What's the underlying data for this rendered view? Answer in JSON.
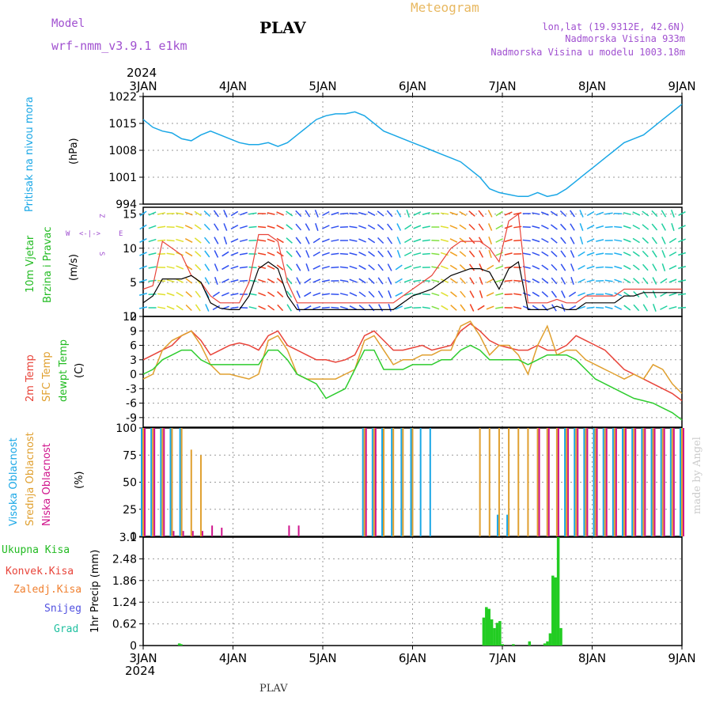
{
  "header": {
    "model_label": "Model",
    "model_name": "wrf-nmm_v3.9.1  e1km",
    "station": "PLAV",
    "meteogram": "Meteogram",
    "lonlat": "lon,lat (19.9312E, 42.6N)",
    "elevation": "Nadmorska Visina 933m",
    "model_elevation": "Nadmorska Visina u modelu 1003.18m",
    "year_top": "2024",
    "year_bottom": "2024",
    "footer_station": "PLAV",
    "credit": "made by Angel"
  },
  "colors": {
    "pressure": "#1aa7e6",
    "t2m": "#e8443a",
    "tsfc": "#e0a030",
    "dewpt": "#2ecc2e",
    "high_cloud": "#1aa7e6",
    "mid_cloud": "#e0a030",
    "low_cloud": "#d0148c",
    "total_precip": "#22cc22",
    "conv_precip": "#e8443a",
    "frz_precip": "#f08030",
    "snow": "#5050e0",
    "graupel": "#20c0a0",
    "wind_speed": "#000000",
    "gust": "#e8443a",
    "model_text": "#a050d0",
    "meteogram_text": "#e8b860"
  },
  "chart_data": [
    {
      "type": "line",
      "id": "pressure",
      "ylabel_title": "Pritisak na nivou mora",
      "ylabel_unit": "(hPa)",
      "x_ticks": [
        "3JAN",
        "4JAN",
        "5JAN",
        "6JAN",
        "7JAN",
        "8JAN",
        "9JAN"
      ],
      "yticks": [
        "994",
        "1001",
        "1008",
        "1015",
        "1022"
      ],
      "ylim": [
        994,
        1022
      ],
      "series": [
        {
          "values": [
            1016,
            1014,
            1013,
            1012.5,
            1011,
            1010.5,
            1012,
            1013,
            1012,
            1011,
            1010,
            1009.5,
            1009.5,
            1010,
            1009,
            1010,
            1012,
            1014,
            1016,
            1017,
            1017.5,
            1017.5,
            1018,
            1017,
            1015,
            1013,
            1012,
            1011,
            1010,
            1009,
            1008,
            1007,
            1006,
            1005,
            1003,
            1001,
            998,
            997,
            996.5,
            996,
            996,
            997,
            996,
            996.5,
            998,
            1000,
            1002,
            1004,
            1006,
            1008,
            1010,
            1011,
            1012,
            1014,
            1016,
            1018,
            1020
          ]
        }
      ]
    },
    {
      "type": "line",
      "id": "wind",
      "ylabel_title1": "10m Vjetar",
      "ylabel_title2": "Brzina i Pravac",
      "ylabel_unit": "(m/s)",
      "compass": [
        "W",
        "<-|->",
        "E",
        "Z",
        "S"
      ],
      "yticks": [
        "0",
        "5",
        "10",
        "15"
      ],
      "ylim": [
        0,
        16
      ],
      "series": [
        {
          "name": "speed",
          "values": [
            2,
            3,
            5.5,
            5.5,
            5.5,
            6,
            5,
            2,
            1.2,
            1,
            1,
            3,
            7,
            8,
            7,
            3,
            1,
            1,
            1,
            1,
            1,
            1,
            1,
            1,
            1,
            1,
            1,
            2,
            3,
            3.5,
            4,
            5,
            6,
            6.5,
            7,
            7,
            6.5,
            4,
            7,
            8,
            1,
            1,
            1,
            1.5,
            1,
            1,
            2,
            2,
            2,
            2,
            3,
            3,
            3.5,
            3.5,
            3.5,
            3.5,
            3.5
          ]
        },
        {
          "name": "gust",
          "values": [
            4,
            4.5,
            11,
            10,
            9,
            6,
            5,
            3,
            2,
            2,
            2,
            5,
            12,
            12,
            11,
            5,
            2,
            2,
            2,
            2,
            2,
            2,
            2,
            2,
            2,
            2,
            2,
            3,
            4,
            5,
            6,
            8,
            10,
            11,
            11,
            11,
            10,
            8,
            14,
            15,
            2,
            2,
            2,
            2.5,
            2,
            2,
            3,
            3,
            3,
            3,
            4,
            4,
            4,
            4,
            4,
            4,
            4
          ]
        }
      ]
    },
    {
      "type": "line",
      "id": "temperature",
      "ylabel_title1": "2m Temp",
      "ylabel_title2": "SFC Temp",
      "ylabel_title3": "dewpt Temp",
      "ylabel_unit": "(C)",
      "yticks": [
        "-9",
        "-6",
        "-3",
        "0",
        "3",
        "6",
        "9",
        "12"
      ],
      "ylim": [
        -11,
        12
      ],
      "series": [
        {
          "name": "2m Temp",
          "values": [
            3,
            4,
            5,
            6,
            8,
            9,
            7,
            4,
            5,
            6,
            6.5,
            6,
            5,
            8,
            9,
            6,
            5,
            4,
            3,
            3,
            2.5,
            3,
            4,
            8,
            9,
            7,
            5,
            5,
            5.5,
            6,
            5,
            5.5,
            6,
            9,
            10.5,
            9,
            7,
            6,
            5.5,
            5,
            5,
            6,
            5,
            5,
            6,
            8,
            7,
            6,
            5,
            3,
            1,
            0,
            -1,
            -2,
            -3,
            -4,
            -5.5
          ]
        },
        {
          "name": "SFC Temp",
          "values": [
            -1,
            0,
            5,
            7,
            8,
            9,
            6,
            2,
            0,
            0,
            -0.5,
            -1,
            0,
            7,
            8,
            5,
            0,
            -1,
            -1,
            -1,
            -1,
            0,
            1,
            7,
            8,
            5,
            2,
            3,
            3,
            4,
            4,
            5,
            5,
            10,
            11,
            8,
            4,
            6,
            6,
            4,
            0,
            6,
            10,
            4,
            5,
            5,
            3,
            2,
            1,
            0,
            -1,
            0,
            -1,
            2,
            1,
            -2,
            -4
          ]
        },
        {
          "name": "dewpt Temp",
          "values": [
            0,
            1,
            3,
            4,
            5,
            5,
            3,
            2,
            2,
            2,
            2,
            2,
            2,
            5,
            5,
            3,
            0,
            -1,
            -2,
            -5,
            -4,
            -3,
            1,
            5,
            5,
            1,
            1,
            1,
            2,
            2,
            2,
            3,
            3,
            5,
            6,
            5,
            3,
            3,
            3,
            3,
            2,
            3,
            4,
            4,
            4,
            3,
            1,
            -1,
            -2,
            -3,
            -4,
            -5,
            -5.5,
            -6,
            -7,
            -8,
            -9.5
          ]
        }
      ]
    },
    {
      "type": "bar",
      "id": "clouds",
      "ylabel_title1": "Visoka Oblacnost",
      "ylabel_title2": "Srednja Oblacnost",
      "ylabel_title3": "Niska Oblacnost",
      "ylabel_unit": "(%)",
      "yticks": [
        "0",
        "25",
        "50",
        "75",
        "100"
      ],
      "ylim": [
        0,
        100
      ],
      "series": [
        {
          "name": "Visoka Oblacnost",
          "values": [
            100,
            100,
            100,
            100,
            100,
            0,
            0,
            0,
            0,
            0,
            0,
            0,
            0,
            0,
            0,
            0,
            0,
            0,
            0,
            0,
            0,
            0,
            0,
            100,
            100,
            100,
            100,
            100,
            100,
            100,
            100,
            0,
            0,
            0,
            0,
            0,
            0,
            20,
            20,
            0,
            0,
            0,
            0,
            0,
            100,
            100,
            100,
            100,
            100,
            100,
            100,
            100,
            100,
            100,
            100,
            100,
            100
          ]
        },
        {
          "name": "Srednja Oblacnost",
          "values": [
            100,
            100,
            100,
            100,
            100,
            80,
            75,
            0,
            0,
            0,
            0,
            0,
            0,
            0,
            0,
            0,
            0,
            0,
            0,
            0,
            0,
            0,
            0,
            100,
            100,
            100,
            100,
            100,
            100,
            0,
            0,
            0,
            0,
            0,
            0,
            100,
            100,
            100,
            100,
            100,
            100,
            100,
            100,
            100,
            100,
            100,
            100,
            100,
            100,
            100,
            100,
            100,
            100,
            100,
            100,
            100,
            100
          ]
        },
        {
          "name": "Niska Oblacnost",
          "values": [
            100,
            100,
            100,
            5,
            5,
            5,
            5,
            10,
            8,
            0,
            0,
            0,
            0,
            0,
            0,
            10,
            10,
            0,
            0,
            0,
            0,
            0,
            0,
            100,
            100,
            0,
            0,
            0,
            0,
            0,
            0,
            0,
            0,
            0,
            0,
            0,
            0,
            0,
            0,
            0,
            0,
            100,
            100,
            100,
            100,
            100,
            100,
            100,
            100,
            100,
            100,
            100,
            100,
            100,
            100,
            100,
            100
          ]
        }
      ]
    },
    {
      "type": "bar",
      "id": "precip",
      "legend": [
        "Ukupna Kisa",
        "Konvek.Kisa",
        "Zaledj.Kisa",
        "Snijeg",
        "Grad"
      ],
      "ylabel": "1hr Precip (mm)",
      "yticks": [
        "0",
        "0.62",
        "1.24",
        "1.86",
        "2.48",
        "3.1"
      ],
      "ylim": [
        0,
        3.1
      ],
      "x_ticks": [
        "3JAN",
        "4JAN",
        "5JAN",
        "6JAN",
        "7JAN",
        "8JAN",
        "9JAN"
      ],
      "series": [
        {
          "name": "Ukupna Kisa",
          "t": [
            0.4,
            0.42,
            3.79,
            3.82,
            3.85,
            3.88,
            3.91,
            3.94,
            3.97,
            4.0,
            4.12,
            4.3,
            4.47,
            4.5,
            4.53,
            4.56,
            4.59,
            4.62,
            4.65,
            4.68
          ],
          "values": [
            0.06,
            0.04,
            0.8,
            1.1,
            1.05,
            0.75,
            0.5,
            0.65,
            0.7,
            0.04,
            0.04,
            0.12,
            0.06,
            0.12,
            0.35,
            2.0,
            1.95,
            3.1,
            0.5,
            0.0
          ]
        }
      ]
    }
  ]
}
